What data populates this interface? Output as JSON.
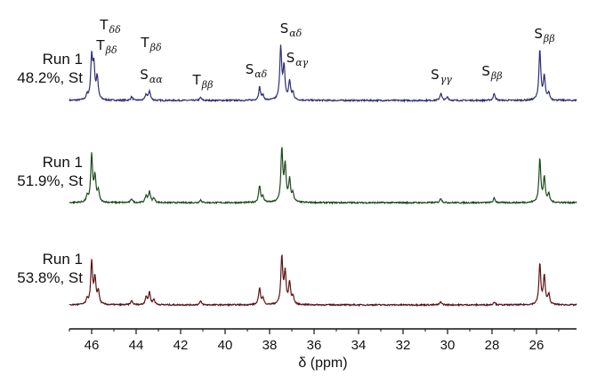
{
  "runs": [
    {
      "name": "Run 1",
      "detail": "48.2%, St",
      "color": "#2e2e78"
    },
    {
      "name": "Run 1",
      "detail": "51.9%, St",
      "color": "#1d4a1d"
    },
    {
      "name": "Run 1",
      "detail": "53.8%, St",
      "color": "#5a1416"
    }
  ],
  "peak_labels": [
    {
      "main": "T",
      "sub": "δδ",
      "ppm": 45.9
    },
    {
      "main": "T",
      "sub": "βδ",
      "ppm": 45.9
    },
    {
      "main": "T",
      "sub": "βδ",
      "ppm": 43.4
    },
    {
      "main": "S",
      "sub": "αα",
      "ppm": 43.4
    },
    {
      "main": "T",
      "sub": "ββ",
      "ppm": 41.1
    },
    {
      "main": "S",
      "sub": "αδ",
      "ppm": 38.4
    },
    {
      "main": "S",
      "sub": "αδ",
      "ppm": 37.4
    },
    {
      "main": "S",
      "sub": "αγ",
      "ppm": 36.8
    },
    {
      "main": "S",
      "sub": "γγ",
      "ppm": 30.3
    },
    {
      "main": "S",
      "sub": "ββ",
      "ppm": 27.9
    },
    {
      "main": "S",
      "sub": "ββ",
      "ppm": 25.8
    }
  ],
  "chart_data": {
    "type": "line",
    "title": "",
    "xlabel": "δ (ppm)",
    "ylabel": "",
    "xlim": [
      47,
      24.2
    ],
    "x_reversed": true,
    "x_ticks": [
      46,
      44,
      42,
      40,
      38,
      36,
      34,
      32,
      30,
      28,
      26
    ],
    "y_axis_shown": false,
    "grid": false,
    "legend": "none",
    "series": [
      {
        "name": "48.2%, St",
        "peaks": [
          {
            "ppm": 46.2,
            "height": 0.08
          },
          {
            "ppm": 46.0,
            "height": 0.72
          },
          {
            "ppm": 45.9,
            "height": 0.55
          },
          {
            "ppm": 45.75,
            "height": 0.38
          },
          {
            "ppm": 44.2,
            "height": 0.06
          },
          {
            "ppm": 43.55,
            "height": 0.1
          },
          {
            "ppm": 43.4,
            "height": 0.16
          },
          {
            "ppm": 41.1,
            "height": 0.05
          },
          {
            "ppm": 38.45,
            "height": 0.22
          },
          {
            "ppm": 38.3,
            "height": 0.08
          },
          {
            "ppm": 37.5,
            "height": 0.9
          },
          {
            "ppm": 37.35,
            "height": 0.55
          },
          {
            "ppm": 37.1,
            "height": 0.32
          },
          {
            "ppm": 36.95,
            "height": 0.12
          },
          {
            "ppm": 30.3,
            "height": 0.12
          },
          {
            "ppm": 30.0,
            "height": 0.06
          },
          {
            "ppm": 27.9,
            "height": 0.12
          },
          {
            "ppm": 25.85,
            "height": 0.85
          },
          {
            "ppm": 25.65,
            "height": 0.4
          },
          {
            "ppm": 25.45,
            "height": 0.12
          }
        ]
      },
      {
        "name": "51.9%, St",
        "peaks": [
          {
            "ppm": 46.2,
            "height": 0.1
          },
          {
            "ppm": 46.0,
            "height": 0.85
          },
          {
            "ppm": 45.85,
            "height": 0.45
          },
          {
            "ppm": 45.7,
            "height": 0.2
          },
          {
            "ppm": 44.2,
            "height": 0.07
          },
          {
            "ppm": 43.55,
            "height": 0.12
          },
          {
            "ppm": 43.4,
            "height": 0.2
          },
          {
            "ppm": 43.2,
            "height": 0.08
          },
          {
            "ppm": 41.1,
            "height": 0.05
          },
          {
            "ppm": 38.45,
            "height": 0.3
          },
          {
            "ppm": 38.3,
            "height": 0.1
          },
          {
            "ppm": 37.45,
            "height": 0.95
          },
          {
            "ppm": 37.3,
            "height": 0.65
          },
          {
            "ppm": 37.1,
            "height": 0.4
          },
          {
            "ppm": 36.95,
            "height": 0.15
          },
          {
            "ppm": 30.3,
            "height": 0.08
          },
          {
            "ppm": 27.9,
            "height": 0.08
          },
          {
            "ppm": 25.85,
            "height": 0.78
          },
          {
            "ppm": 25.65,
            "height": 0.45
          },
          {
            "ppm": 25.45,
            "height": 0.15
          }
        ]
      },
      {
        "name": "53.8%, St",
        "peaks": [
          {
            "ppm": 46.2,
            "height": 0.1
          },
          {
            "ppm": 46.0,
            "height": 0.82
          },
          {
            "ppm": 45.85,
            "height": 0.5
          },
          {
            "ppm": 45.7,
            "height": 0.25
          },
          {
            "ppm": 44.2,
            "height": 0.08
          },
          {
            "ppm": 43.55,
            "height": 0.15
          },
          {
            "ppm": 43.4,
            "height": 0.24
          },
          {
            "ppm": 43.2,
            "height": 0.1
          },
          {
            "ppm": 41.1,
            "height": 0.07
          },
          {
            "ppm": 38.45,
            "height": 0.32
          },
          {
            "ppm": 38.3,
            "height": 0.12
          },
          {
            "ppm": 37.45,
            "height": 0.92
          },
          {
            "ppm": 37.3,
            "height": 0.6
          },
          {
            "ppm": 37.1,
            "height": 0.42
          },
          {
            "ppm": 36.95,
            "height": 0.15
          },
          {
            "ppm": 30.3,
            "height": 0.06
          },
          {
            "ppm": 27.9,
            "height": 0.06
          },
          {
            "ppm": 25.85,
            "height": 0.78
          },
          {
            "ppm": 25.65,
            "height": 0.55
          },
          {
            "ppm": 25.45,
            "height": 0.2
          }
        ]
      }
    ]
  }
}
